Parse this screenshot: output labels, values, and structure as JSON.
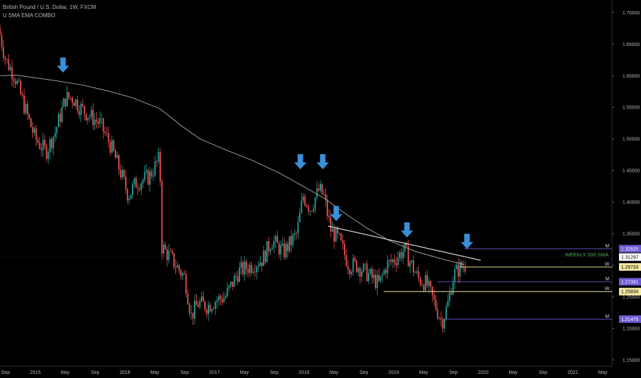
{
  "header": {
    "symbol_line": "British Pound / U.S. Dollar, 1W, FXCM",
    "indicator_line": "U SMA EMA COMBO"
  },
  "colors": {
    "background": "#000000",
    "up": "#26a69a",
    "down": "#ef5350",
    "sma": "#9e9e9e",
    "trendline": "#d9d9d9",
    "arrow": "#3a8fd9",
    "monthly_level": "#6b5bd3",
    "weekly_level": "#f5e8a0",
    "weekly200": "#4caf50"
  },
  "chart_data": {
    "type": "candlestick",
    "title": "British Pound / U.S. Dollar, 1W, FXCM",
    "x_ticks": [
      "Sep",
      "2015",
      "May",
      "Sep",
      "2016",
      "May",
      "Sep",
      "2017",
      "May",
      "Sep",
      "2018",
      "May",
      "Sep",
      "2019",
      "May",
      "Sep",
      "2020",
      "May",
      "Sep",
      "2021",
      "May"
    ],
    "x_range": [
      2014.667,
      2021.5
    ],
    "ylim": [
      1.14,
      1.72
    ],
    "y_ticks": [
      1.15,
      1.2,
      1.25,
      1.3,
      1.35,
      1.4,
      1.45,
      1.5,
      1.55,
      1.6,
      1.65,
      1.7
    ],
    "y_tick_labels": [
      "1.15000",
      "1.20000",
      "1.25000",
      "1.30000",
      "1.35000",
      "1.40000",
      "1.45000",
      "1.50000",
      "1.55000",
      "1.60000",
      "1.65000",
      "1.70000"
    ],
    "price_anchors": [
      [
        2014.67,
        1.675
      ],
      [
        2014.75,
        1.625
      ],
      [
        2014.85,
        1.6
      ],
      [
        2014.95,
        1.555
      ],
      [
        2015.08,
        1.5
      ],
      [
        2015.2,
        1.48
      ],
      [
        2015.3,
        1.51
      ],
      [
        2015.42,
        1.565
      ],
      [
        2015.5,
        1.565
      ],
      [
        2015.58,
        1.55
      ],
      [
        2015.7,
        1.535
      ],
      [
        2015.8,
        1.525
      ],
      [
        2015.92,
        1.49
      ],
      [
        2016.05,
        1.44
      ],
      [
        2016.12,
        1.41
      ],
      [
        2016.2,
        1.43
      ],
      [
        2016.35,
        1.44
      ],
      [
        2016.47,
        1.47
      ],
      [
        2016.49,
        1.33
      ],
      [
        2016.6,
        1.31
      ],
      [
        2016.75,
        1.28
      ],
      [
        2016.82,
        1.22
      ],
      [
        2016.9,
        1.24
      ],
      [
        2017.0,
        1.235
      ],
      [
        2017.1,
        1.245
      ],
      [
        2017.2,
        1.25
      ],
      [
        2017.35,
        1.29
      ],
      [
        2017.5,
        1.3
      ],
      [
        2017.62,
        1.31
      ],
      [
        2017.72,
        1.34
      ],
      [
        2017.85,
        1.32
      ],
      [
        2018.0,
        1.35
      ],
      [
        2018.07,
        1.41
      ],
      [
        2018.15,
        1.39
      ],
      [
        2018.25,
        1.42
      ],
      [
        2018.3,
        1.41
      ],
      [
        2018.38,
        1.355
      ],
      [
        2018.47,
        1.34
      ],
      [
        2018.58,
        1.3
      ],
      [
        2018.67,
        1.3
      ],
      [
        2018.8,
        1.285
      ],
      [
        2018.92,
        1.27
      ],
      [
        2019.0,
        1.3
      ],
      [
        2019.1,
        1.31
      ],
      [
        2019.2,
        1.325
      ],
      [
        2019.25,
        1.31
      ],
      [
        2019.35,
        1.28
      ],
      [
        2019.45,
        1.27
      ],
      [
        2019.55,
        1.235
      ],
      [
        2019.62,
        1.21
      ],
      [
        2019.68,
        1.235
      ],
      [
        2019.75,
        1.285
      ],
      [
        2019.82,
        1.296
      ],
      [
        2019.87,
        1.3
      ]
    ],
    "sma_200_weekly": [
      [
        2014.67,
        1.6
      ],
      [
        2014.85,
        1.601
      ],
      [
        2015.0,
        1.598
      ],
      [
        2015.3,
        1.592
      ],
      [
        2015.6,
        1.585
      ],
      [
        2015.9,
        1.575
      ],
      [
        2016.15,
        1.565
      ],
      [
        2016.45,
        1.548
      ],
      [
        2016.7,
        1.52
      ],
      [
        2016.9,
        1.5
      ],
      [
        2017.2,
        1.482
      ],
      [
        2017.5,
        1.465
      ],
      [
        2017.8,
        1.445
      ],
      [
        2018.05,
        1.425
      ],
      [
        2018.3,
        1.405
      ],
      [
        2018.5,
        1.384
      ],
      [
        2018.75,
        1.36
      ],
      [
        2019.0,
        1.34
      ],
      [
        2019.3,
        1.322
      ],
      [
        2019.6,
        1.31
      ],
      [
        2019.85,
        1.301
      ]
    ],
    "trendlines": [
      {
        "from": [
          2018.33,
          1.362
        ],
        "to": [
          2019.88,
          1.307
        ]
      }
    ],
    "levels": [
      {
        "tag": "M",
        "value": 1.3262,
        "label": "1.32620",
        "kind": "monthly",
        "x_start": 2019.85
      },
      {
        "tag": "",
        "value": 1.31297,
        "label": "1.31297",
        "kind": "current",
        "x_start": 2014.67
      },
      {
        "tag": "W",
        "value": 1.29733,
        "label": "1.29733",
        "kind": "weekly",
        "x_start": 2019.8
      },
      {
        "tag": "M",
        "value": 1.27391,
        "label": "1.27391",
        "kind": "monthly",
        "x_start": 2019.55
      },
      {
        "tag": "W",
        "value": 1.25834,
        "label": "1.25834",
        "kind": "weekly",
        "x_start": 2018.95
      },
      {
        "tag": "M",
        "value": 1.21475,
        "label": "1.21475",
        "kind": "monthly",
        "x_start": 2019.62
      }
    ],
    "annotations": {
      "weekly_200": "WEEKLY 200 SMA"
    },
    "arrows": [
      {
        "x": 2015.37,
        "y": 1.605
      },
      {
        "x": 2018.02,
        "y": 1.452
      },
      {
        "x": 2018.27,
        "y": 1.452
      },
      {
        "x": 2018.42,
        "y": 1.37
      },
      {
        "x": 2019.21,
        "y": 1.344
      },
      {
        "x": 2019.88,
        "y": 1.326
      }
    ]
  }
}
